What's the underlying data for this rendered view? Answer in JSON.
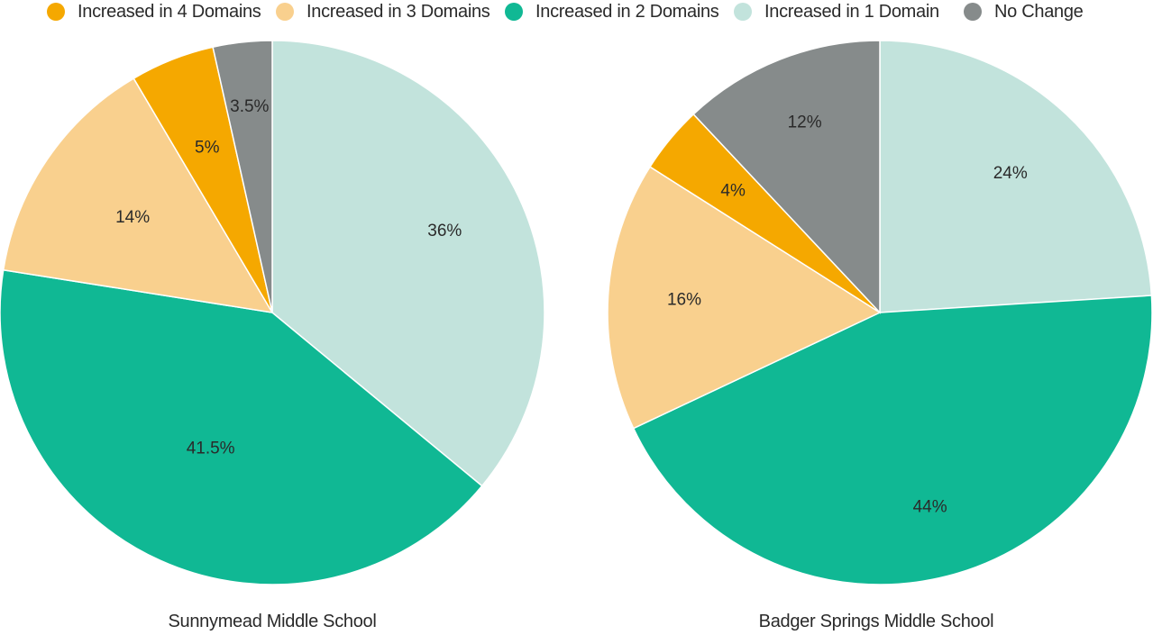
{
  "legend": [
    {
      "label": "Increased in 4 Domains",
      "color": "#F5A800"
    },
    {
      "label": "Increased in 3 Domains",
      "color": "#F9D08E"
    },
    {
      "label": "Increased in 2 Domains",
      "color": "#10B894"
    },
    {
      "label": "Increased in 1 Domain",
      "color": "#C2E3DC"
    },
    {
      "label": "No Change",
      "color": "#868B8B"
    }
  ],
  "chart_data": [
    {
      "type": "pie",
      "title": "Sunnymead Middle School",
      "slices": [
        {
          "category": "Increased in 1 Domain",
          "value": 36,
          "label": "36%"
        },
        {
          "category": "Increased in 2 Domains",
          "value": 41.5,
          "label": "41.5%"
        },
        {
          "category": "Increased in 3 Domains",
          "value": 14,
          "label": "14%"
        },
        {
          "category": "Increased in 4 Domains",
          "value": 5,
          "label": "5%"
        },
        {
          "category": "No Change",
          "value": 3.5,
          "label": "3.5%"
        }
      ],
      "start": "12 o'clock",
      "direction": "clockwise"
    },
    {
      "type": "pie",
      "title": "Badger Springs Middle School",
      "slices": [
        {
          "category": "Increased in 1 Domain",
          "value": 24,
          "label": "24%"
        },
        {
          "category": "Increased in 2 Domains",
          "value": 44,
          "label": "44%"
        },
        {
          "category": "Increased in 3 Domains",
          "value": 16,
          "label": "16%"
        },
        {
          "category": "Increased in 4 Domains",
          "value": 4,
          "label": "4%"
        },
        {
          "category": "No Change",
          "value": 12,
          "label": "12%"
        }
      ],
      "start": "12 o'clock",
      "direction": "clockwise"
    }
  ]
}
